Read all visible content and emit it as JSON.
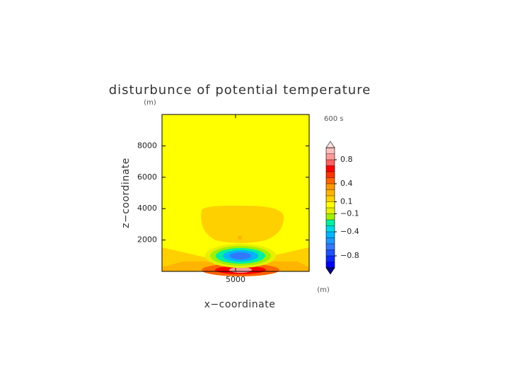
{
  "chart_data": {
    "type": "contour",
    "title": "disturbunce of potential temperature",
    "xlabel": "x−coordinate",
    "ylabel": "z−coordinate",
    "xunit": "(m)",
    "yunit": "(m)",
    "annotation": "600 s",
    "xlim": [
      0,
      10000
    ],
    "ylim": [
      0,
      10000
    ],
    "xticks": [
      5000
    ],
    "yticks": [
      2000,
      4000,
      6000,
      8000
    ],
    "colorbar": {
      "levels": [
        -1,
        -0.9,
        -0.8,
        -0.7,
        -0.6,
        -0.5,
        -0.4,
        -0.3,
        -0.2,
        -0.1,
        0,
        0.1,
        0.2,
        0.3,
        0.4,
        0.5,
        0.6,
        0.7,
        0.8,
        0.9,
        1
      ],
      "colors": [
        "#0000ff",
        "#0a28ff",
        "#1e50ff",
        "#3278ff",
        "#1e96ff",
        "#00b4ff",
        "#00d8e8",
        "#00f0a0",
        "#a0f000",
        "#e6f000",
        "#ffff00",
        "#ffd000",
        "#ffb400",
        "#ff9600",
        "#ff6400",
        "#ff3200",
        "#ff0000",
        "#ff6060",
        "#ff9a9a",
        "#ffc0c0"
      ],
      "under_color": "#000080",
      "over_color": "#ffe0e0",
      "ticks": [
        0.8,
        0.4,
        0.1,
        {
          "value": -0.1,
          "label": "−0.1"
        },
        {
          "value": -0.4,
          "label": "−0.4"
        },
        {
          "value": -0.8,
          "label": "−0.8"
        }
      ]
    }
  }
}
